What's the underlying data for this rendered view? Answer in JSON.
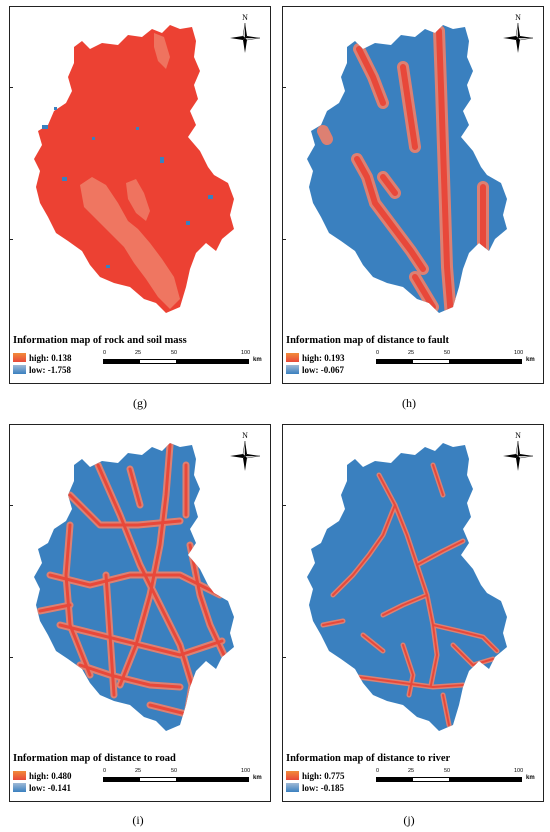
{
  "panels": [
    {
      "id": "g",
      "caption": "(g)",
      "title": "Information map of rock and soil mass",
      "high_label": "high: 0.138",
      "low_label": "low: -1.758"
    },
    {
      "id": "h",
      "caption": "(h)",
      "title": "Information map of distance to fault",
      "high_label": "high: 0.193",
      "low_label": "low: -0.067"
    },
    {
      "id": "i",
      "caption": "(i)",
      "title": "Information map of distance to road",
      "high_label": "high: 0.480",
      "low_label": "low: -0.141"
    },
    {
      "id": "j",
      "caption": "(j)",
      "title": "Information map of distance to river",
      "high_label": "high: 0.775",
      "low_label": "low: -0.185"
    }
  ],
  "north_label": "N",
  "scale": {
    "labels": [
      "0",
      "25",
      "50",
      "100"
    ],
    "unit": "km"
  },
  "colors": {
    "high": "#e8483a",
    "high_light": "#f28b3a",
    "low": "#3a80bf",
    "low_light": "#9fb9d6",
    "rock_dominant": "#ec4133"
  },
  "icons": [
    "north-arrow-icon",
    "compass-rose-icon"
  ]
}
